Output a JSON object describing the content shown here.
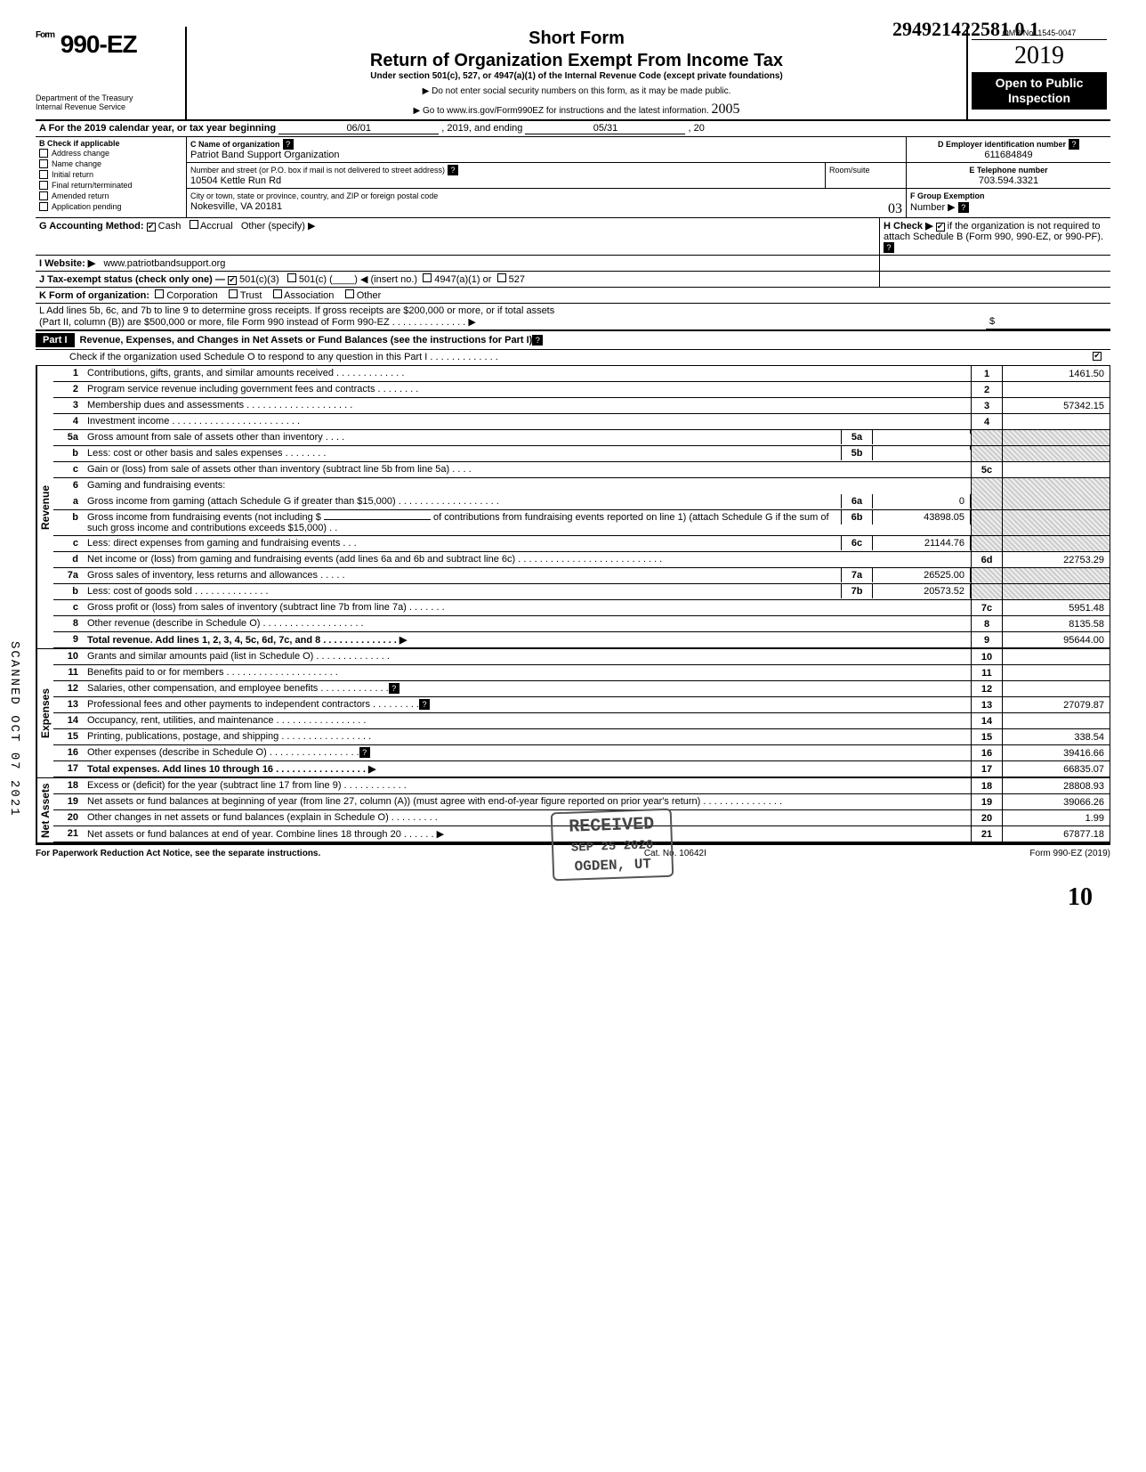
{
  "handwritten_top": "294921422581 0   1",
  "header": {
    "form_prefix": "Form",
    "form_number": "990-EZ",
    "short_form": "Short Form",
    "title": "Return of Organization Exempt From Income Tax",
    "subtitle": "Under section 501(c), 527, or 4947(a)(1) of the Internal Revenue Code (except private foundations)",
    "note1": "▶ Do not enter social security numbers on this form, as it may be made public.",
    "note2": "▶ Go to www.irs.gov/Form990EZ for instructions and the latest information.",
    "dept1": "Department of the Treasury",
    "dept2": "Internal Revenue Service",
    "omb": "OMB No. 1545-0047",
    "year": "2019",
    "open1": "Open to Public",
    "open2": "Inspection",
    "hand_2005": "2005"
  },
  "periodA": {
    "label": "A  For the 2019 calendar year, or tax year beginning",
    "begin": "06/01",
    "mid": ", 2019, and ending",
    "end": "05/31",
    "tail": ", 20"
  },
  "boxB": {
    "label": "B  Check if applicable",
    "items": [
      "Address change",
      "Name change",
      "Initial return",
      "Final return/terminated",
      "Amended return",
      "Application pending"
    ]
  },
  "boxC": {
    "label": "C  Name of organization",
    "name": "Patriot Band Support Organization",
    "addr_label": "Number and street (or P.O. box if mail is not delivered to street address)",
    "room_label": "Room/suite",
    "addr": "10504 Kettle Run Rd",
    "city_label": "City or town, state or province, country, and ZIP or foreign postal code",
    "city": "Nokesville, VA 20181",
    "hand_03": "03"
  },
  "boxD": {
    "label": "D Employer identification number",
    "val": "611684849"
  },
  "boxE": {
    "label": "E Telephone number",
    "val": "703.594.3321"
  },
  "boxF": {
    "label": "F Group Exemption",
    "label2": "Number ▶"
  },
  "lineG": {
    "label": "G  Accounting Method:",
    "cash": "Cash",
    "accrual": "Accrual",
    "other": "Other (specify) ▶"
  },
  "lineH": {
    "label": "H  Check ▶",
    "tail": "if the organization is not required to attach Schedule B (Form 990, 990-EZ, or 990-PF)."
  },
  "lineI": {
    "label": "I   Website: ▶",
    "val": "www.patriotbandsupport.org"
  },
  "lineJ": {
    "label": "J  Tax-exempt status (check only one) —",
    "o1": "501(c)(3)",
    "o2": "501(c) (",
    "o2b": ") ◀ (insert no.)",
    "o3": "4947(a)(1) or",
    "o4": "527"
  },
  "lineK": {
    "label": "K  Form of organization:",
    "o1": "Corporation",
    "o2": "Trust",
    "o3": "Association",
    "o4": "Other"
  },
  "lineL": {
    "t1": "L  Add lines 5b, 6c, and 7b to line 9 to determine gross receipts. If gross receipts are $200,000 or more, or if total assets",
    "t2": "(Part II, column (B)) are $500,000 or more, file Form 990 instead of Form 990-EZ .   .   .   .   .   .   .   .   .   .   .   .   .   .   ▶",
    "sym": "$"
  },
  "part1": {
    "tag": "Part I",
    "title": "Revenue, Expenses, and Changes in Net Assets or Fund Balances (see the instructions for Part I)",
    "check_line": "Check if the organization used Schedule O to respond to any question in this Part I .   .   .   .   .   .   .   .   .   .   .   .   ."
  },
  "tabs": {
    "rev": "Revenue",
    "exp": "Expenses",
    "net": "Net Assets"
  },
  "lines": {
    "l1": {
      "n": "1",
      "t": "Contributions, gifts, grants, and similar amounts received .   .   .   .   .   .   .   .   .   .   .   .   .",
      "box": "1",
      "v": "1461.50"
    },
    "l2": {
      "n": "2",
      "t": "Program service revenue including government fees and contracts    .   .   .   .   .   .   .   .",
      "box": "2",
      "v": ""
    },
    "l3": {
      "n": "3",
      "t": "Membership dues and assessments .   .   .   .   .   .   .   .   .   .   .   .   .   .   .   .   .   .   .   .",
      "box": "3",
      "v": "57342.15"
    },
    "l4": {
      "n": "4",
      "t": "Investment income    .   .   .   .   .   .   .   .   .   .   .   .   .   .   .   .   .   .   .   .   .   .   .   .",
      "box": "4",
      "v": ""
    },
    "l5a": {
      "n": "5a",
      "t": "Gross amount from sale of assets other than inventory    .   .   .   .",
      "sb": "5a",
      "sv": ""
    },
    "l5b": {
      "n": "b",
      "t": "Less: cost or other basis and sales expenses .   .   .   .   .   .   .   .",
      "sb": "5b",
      "sv": ""
    },
    "l5c": {
      "n": "c",
      "t": "Gain or (loss) from sale of assets other than inventory (subtract line 5b from line 5a)  .   .   .   .",
      "box": "5c",
      "v": ""
    },
    "l6": {
      "n": "6",
      "t": "Gaming and fundraising events:"
    },
    "l6a": {
      "n": "a",
      "t": "Gross income from gaming (attach Schedule G if greater than $15,000) .   .   .   .   .   .   .   .   .   .   .   .   .   .   .   .   .   .   .",
      "sb": "6a",
      "sv": "0"
    },
    "l6b": {
      "n": "b",
      "t": "Gross income from fundraising events (not including  $",
      "t2": "of contributions from fundraising events reported on line 1) (attach Schedule G if the sum of such gross income and contributions exceeds $15,000) .   .",
      "sb": "6b",
      "sv": "43898.05"
    },
    "l6c": {
      "n": "c",
      "t": "Less: direct expenses from gaming and fundraising events   .   .   .",
      "sb": "6c",
      "sv": "21144.76"
    },
    "l6d": {
      "n": "d",
      "t": "Net income or (loss) from gaming and fundraising events (add lines 6a and 6b and subtract line 6c)    .   .   .   .   .   .   .   .   .   .   .   .   .   .   .   .   .   .   .   .   .   .   .   .   .   .   .",
      "box": "6d",
      "v": "22753.29"
    },
    "l7a": {
      "n": "7a",
      "t": "Gross sales of inventory, less returns and allowances  .   .   .   .   .",
      "sb": "7a",
      "sv": "26525.00"
    },
    "l7b": {
      "n": "b",
      "t": "Less: cost of goods sold    .   .   .   .   .   .   .   .   .   .   .   .   .   .",
      "sb": "7b",
      "sv": "20573.52"
    },
    "l7c": {
      "n": "c",
      "t": "Gross profit or (loss) from sales of inventory (subtract line 7b from line 7a)   .   .   .   .   .   .   .",
      "box": "7c",
      "v": "5951.48"
    },
    "l8": {
      "n": "8",
      "t": "Other revenue (describe in Schedule O) .   .   .   .   .   .   .   .   .   .   .   .   .   .   .   .   .   .   .",
      "box": "8",
      "v": "8135.58"
    },
    "l9": {
      "n": "9",
      "t": "Total revenue. Add lines 1, 2, 3, 4, 5c, 6d, 7c, and 8   .   .   .   .   .   .   .   .   .   .   .   .   .   .  ▶",
      "box": "9",
      "v": "95644.00",
      "bold": true
    },
    "l10": {
      "n": "10",
      "t": "Grants and similar amounts paid (list in Schedule O)    .   .   .   .   .   .   .   .   .   .   .   .   .   .",
      "box": "10",
      "v": ""
    },
    "l11": {
      "n": "11",
      "t": "Benefits paid to or for members   .   .   .   .   .   .   .   .   .   .   .   .   .   .   .   .   .   .   .   .   .",
      "box": "11",
      "v": ""
    },
    "l12": {
      "n": "12",
      "t": "Salaries, other compensation, and employee benefits   .   .   .   .   .   .   .   .   .   .   .   .   .",
      "box": "12",
      "v": ""
    },
    "l13": {
      "n": "13",
      "t": "Professional fees and other payments to independent contractors   .   .   .   .   .   .   .   .   .",
      "box": "13",
      "v": "27079.87"
    },
    "l14": {
      "n": "14",
      "t": "Occupancy, rent, utilities, and maintenance    .   .   .   .   .   .   .   .   .   .   .   .   .   .   .   .   .",
      "box": "14",
      "v": ""
    },
    "l15": {
      "n": "15",
      "t": "Printing, publications, postage, and shipping .   .   .   .   .   .   .   .   .   .   .   .   .   .   .   .   .",
      "box": "15",
      "v": "338.54"
    },
    "l16": {
      "n": "16",
      "t": "Other expenses (describe in Schedule O)   .   .   .   .   .   .   .   .   .   .   .   .   .   .   .   .   .",
      "box": "16",
      "v": "39416.66"
    },
    "l17": {
      "n": "17",
      "t": "Total expenses. Add lines 10 through 16 .   .   .   .   .   .   .   .   .   .   .   .   .   .   .   .   .  ▶",
      "box": "17",
      "v": "66835.07",
      "bold": true
    },
    "l18": {
      "n": "18",
      "t": "Excess or (deficit) for the year (subtract line 17 from line 9)    .   .   .   .   .   .   .   .   .   .   .   .",
      "box": "18",
      "v": "28808.93"
    },
    "l19": {
      "n": "19",
      "t": "Net assets or fund balances at beginning of year (from line 27, column (A)) (must agree with end-of-year figure reported on prior year's return)    .   .   .   .   .   .   .   .   .   .   .   .   .   .   .",
      "box": "19",
      "v": "39066.26"
    },
    "l20": {
      "n": "20",
      "t": "Other changes in net assets or fund balances (explain in Schedule O) .   .   .   .   .   .   .   .   .",
      "box": "20",
      "v": "1.99"
    },
    "l21": {
      "n": "21",
      "t": "Net assets or fund balances at end of year. Combine lines 18 through 20    .   .   .   .   .   .  ▶",
      "box": "21",
      "v": "67877.18"
    }
  },
  "footer": {
    "left": "For Paperwork Reduction Act Notice, see the separate instructions.",
    "mid": "Cat. No. 10642I",
    "right": "Form 990-EZ (2019)"
  },
  "stamp": {
    "l1": "RECEIVED",
    "l2": "SEP 25 2020",
    "l3": "OGDEN, UT"
  },
  "scanned": "SCANNED OCT 07 2021",
  "hand_10": "10"
}
